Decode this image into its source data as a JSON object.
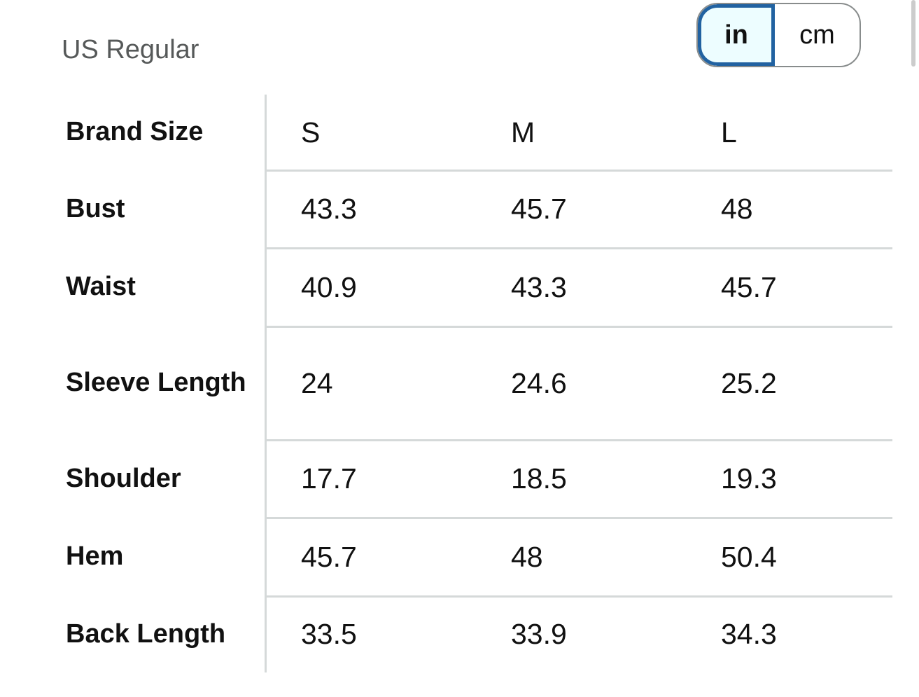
{
  "header": {
    "title": "US Regular"
  },
  "unit_toggle": {
    "options": [
      "in",
      "cm"
    ],
    "selected": "in"
  },
  "table": {
    "columns": [
      "Brand Size",
      "S",
      "M",
      "L"
    ],
    "rows": [
      [
        "Bust",
        "43.3",
        "45.7",
        "48"
      ],
      [
        "Waist",
        "40.9",
        "43.3",
        "45.7"
      ],
      [
        "Sleeve Length",
        "24",
        "24.6",
        "25.2"
      ],
      [
        "Shoulder",
        "17.7",
        "18.5",
        "19.3"
      ],
      [
        "Hem",
        "45.7",
        "48",
        "50.4"
      ],
      [
        "Back Length",
        "33.5",
        "33.9",
        "34.3"
      ]
    ]
  }
}
